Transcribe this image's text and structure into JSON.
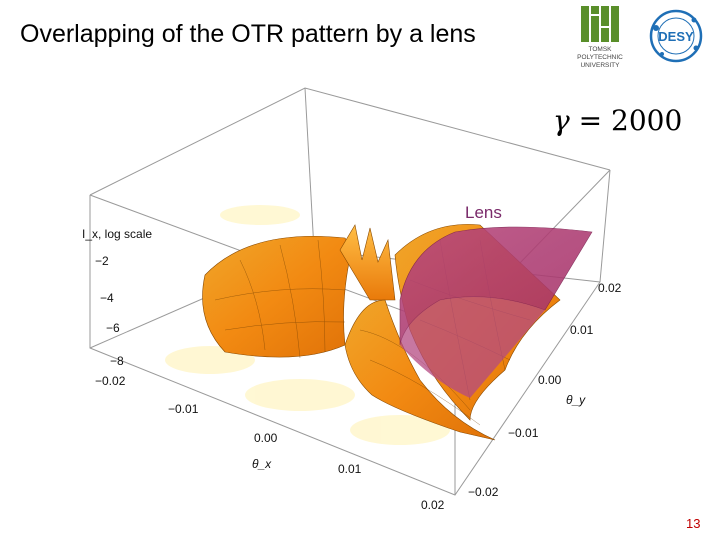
{
  "slide": {
    "title": "Overlapping of the OTR pattern by a lens",
    "page_number": "13"
  },
  "logos": {
    "tpu_lines": [
      "TOMSK",
      "POLYTECHNIC",
      "UNIVERSITY"
    ],
    "desy_text": "DESY",
    "tpu_color": "#5a8f2a",
    "desy_color": "#1f6fb6"
  },
  "annotations": {
    "gamma_symbol": "γ",
    "gamma_equals": "= 2000",
    "lens_label": "Lens"
  },
  "chart_data": {
    "type": "surface3d",
    "title": "",
    "zlabel": "I_x, log scale",
    "z_ticks": [
      "−2",
      "−4",
      "−6",
      "−8"
    ],
    "xlabel": "θ_x",
    "x_ticks": [
      "−0.02",
      "−0.01",
      "0.00",
      "0.01",
      "0.02"
    ],
    "ylabel": "θ_y",
    "y_ticks": [
      "0.02",
      "0.01",
      "0.00",
      "−0.01",
      "−0.02"
    ],
    "surface_color": "#f5a21a",
    "lens_color": "#b03a78"
  }
}
